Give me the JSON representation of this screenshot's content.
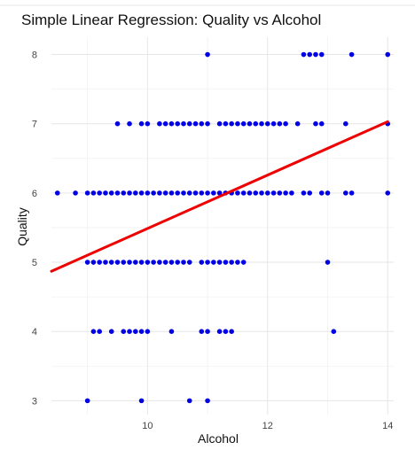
{
  "chart_data": {
    "type": "scatter",
    "title": "Simple Linear Regression: Quality vs Alcohol",
    "xlabel": "Alcohol",
    "ylabel": "Quality",
    "xlim": [
      8.4,
      14.1
    ],
    "ylim": [
      2.8,
      8.25
    ],
    "x_ticks": [
      10,
      12,
      14
    ],
    "y_ticks": [
      3,
      4,
      5,
      6,
      7,
      8
    ],
    "grid": true,
    "colors": {
      "points": "#0000e6",
      "line": "#ee0000"
    },
    "regression_line": {
      "x": [
        8.4,
        14.0
      ],
      "y": [
        4.87,
        7.03
      ]
    },
    "points": [
      {
        "x": 11.0,
        "y": 8
      },
      {
        "x": 12.6,
        "y": 8
      },
      {
        "x": 12.7,
        "y": 8
      },
      {
        "x": 12.8,
        "y": 8
      },
      {
        "x": 12.9,
        "y": 8
      },
      {
        "x": 13.4,
        "y": 8
      },
      {
        "x": 14.0,
        "y": 8
      },
      {
        "x": 9.5,
        "y": 7
      },
      {
        "x": 9.7,
        "y": 7
      },
      {
        "x": 9.9,
        "y": 7
      },
      {
        "x": 10.0,
        "y": 7
      },
      {
        "x": 10.2,
        "y": 7
      },
      {
        "x": 10.3,
        "y": 7
      },
      {
        "x": 10.4,
        "y": 7
      },
      {
        "x": 10.5,
        "y": 7
      },
      {
        "x": 10.6,
        "y": 7
      },
      {
        "x": 10.7,
        "y": 7
      },
      {
        "x": 10.8,
        "y": 7
      },
      {
        "x": 10.9,
        "y": 7
      },
      {
        "x": 11.0,
        "y": 7
      },
      {
        "x": 11.2,
        "y": 7
      },
      {
        "x": 11.3,
        "y": 7
      },
      {
        "x": 11.4,
        "y": 7
      },
      {
        "x": 11.5,
        "y": 7
      },
      {
        "x": 11.6,
        "y": 7
      },
      {
        "x": 11.7,
        "y": 7
      },
      {
        "x": 11.8,
        "y": 7
      },
      {
        "x": 11.9,
        "y": 7
      },
      {
        "x": 12.0,
        "y": 7
      },
      {
        "x": 12.1,
        "y": 7
      },
      {
        "x": 12.2,
        "y": 7
      },
      {
        "x": 12.3,
        "y": 7
      },
      {
        "x": 12.5,
        "y": 7
      },
      {
        "x": 12.8,
        "y": 7
      },
      {
        "x": 12.9,
        "y": 7
      },
      {
        "x": 13.3,
        "y": 7
      },
      {
        "x": 14.0,
        "y": 7
      },
      {
        "x": 8.5,
        "y": 6
      },
      {
        "x": 8.8,
        "y": 6
      },
      {
        "x": 9.0,
        "y": 6
      },
      {
        "x": 9.1,
        "y": 6
      },
      {
        "x": 9.2,
        "y": 6
      },
      {
        "x": 9.3,
        "y": 6
      },
      {
        "x": 9.4,
        "y": 6
      },
      {
        "x": 9.5,
        "y": 6
      },
      {
        "x": 9.6,
        "y": 6
      },
      {
        "x": 9.7,
        "y": 6
      },
      {
        "x": 9.8,
        "y": 6
      },
      {
        "x": 9.9,
        "y": 6
      },
      {
        "x": 10.0,
        "y": 6
      },
      {
        "x": 10.1,
        "y": 6
      },
      {
        "x": 10.2,
        "y": 6
      },
      {
        "x": 10.3,
        "y": 6
      },
      {
        "x": 10.4,
        "y": 6
      },
      {
        "x": 10.5,
        "y": 6
      },
      {
        "x": 10.6,
        "y": 6
      },
      {
        "x": 10.7,
        "y": 6
      },
      {
        "x": 10.8,
        "y": 6
      },
      {
        "x": 10.9,
        "y": 6
      },
      {
        "x": 11.0,
        "y": 6
      },
      {
        "x": 11.1,
        "y": 6
      },
      {
        "x": 11.2,
        "y": 6
      },
      {
        "x": 11.3,
        "y": 6
      },
      {
        "x": 11.4,
        "y": 6
      },
      {
        "x": 11.5,
        "y": 6
      },
      {
        "x": 11.6,
        "y": 6
      },
      {
        "x": 11.7,
        "y": 6
      },
      {
        "x": 11.8,
        "y": 6
      },
      {
        "x": 11.9,
        "y": 6
      },
      {
        "x": 12.0,
        "y": 6
      },
      {
        "x": 12.1,
        "y": 6
      },
      {
        "x": 12.2,
        "y": 6
      },
      {
        "x": 12.3,
        "y": 6
      },
      {
        "x": 12.4,
        "y": 6
      },
      {
        "x": 12.6,
        "y": 6
      },
      {
        "x": 12.7,
        "y": 6
      },
      {
        "x": 12.9,
        "y": 6
      },
      {
        "x": 13.0,
        "y": 6
      },
      {
        "x": 13.3,
        "y": 6
      },
      {
        "x": 13.4,
        "y": 6
      },
      {
        "x": 14.0,
        "y": 6
      },
      {
        "x": 9.0,
        "y": 5
      },
      {
        "x": 9.1,
        "y": 5
      },
      {
        "x": 9.2,
        "y": 5
      },
      {
        "x": 9.3,
        "y": 5
      },
      {
        "x": 9.4,
        "y": 5
      },
      {
        "x": 9.5,
        "y": 5
      },
      {
        "x": 9.6,
        "y": 5
      },
      {
        "x": 9.7,
        "y": 5
      },
      {
        "x": 9.8,
        "y": 5
      },
      {
        "x": 9.9,
        "y": 5
      },
      {
        "x": 10.0,
        "y": 5
      },
      {
        "x": 10.1,
        "y": 5
      },
      {
        "x": 10.2,
        "y": 5
      },
      {
        "x": 10.3,
        "y": 5
      },
      {
        "x": 10.4,
        "y": 5
      },
      {
        "x": 10.5,
        "y": 5
      },
      {
        "x": 10.6,
        "y": 5
      },
      {
        "x": 10.7,
        "y": 5
      },
      {
        "x": 10.9,
        "y": 5
      },
      {
        "x": 11.0,
        "y": 5
      },
      {
        "x": 11.1,
        "y": 5
      },
      {
        "x": 11.2,
        "y": 5
      },
      {
        "x": 11.3,
        "y": 5
      },
      {
        "x": 11.4,
        "y": 5
      },
      {
        "x": 11.5,
        "y": 5
      },
      {
        "x": 11.6,
        "y": 5
      },
      {
        "x": 13.0,
        "y": 5
      },
      {
        "x": 9.1,
        "y": 4
      },
      {
        "x": 9.2,
        "y": 4
      },
      {
        "x": 9.4,
        "y": 4
      },
      {
        "x": 9.6,
        "y": 4
      },
      {
        "x": 9.7,
        "y": 4
      },
      {
        "x": 9.8,
        "y": 4
      },
      {
        "x": 9.9,
        "y": 4
      },
      {
        "x": 10.0,
        "y": 4
      },
      {
        "x": 10.4,
        "y": 4
      },
      {
        "x": 10.9,
        "y": 4
      },
      {
        "x": 11.0,
        "y": 4
      },
      {
        "x": 11.2,
        "y": 4
      },
      {
        "x": 11.3,
        "y": 4
      },
      {
        "x": 11.4,
        "y": 4
      },
      {
        "x": 13.1,
        "y": 4
      },
      {
        "x": 9.0,
        "y": 3
      },
      {
        "x": 9.9,
        "y": 3
      },
      {
        "x": 10.7,
        "y": 3
      },
      {
        "x": 11.0,
        "y": 3
      }
    ]
  }
}
